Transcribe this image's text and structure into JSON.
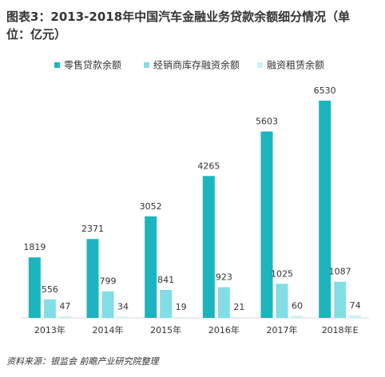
{
  "chart_data": {
    "type": "bar",
    "title": "图表3：2013-2018年中国汽车金融业务贷款余额细分情况（单位：亿元）",
    "categories": [
      "2013年",
      "2014年",
      "2015年",
      "2016年",
      "2017年",
      "2018年E"
    ],
    "series": [
      {
        "name": "零售贷款余额",
        "color": "#1cb5bd",
        "values": [
          1819,
          2371,
          3052,
          4265,
          5603,
          6530
        ]
      },
      {
        "name": "经销商库存融资余额",
        "color": "#82dde6",
        "values": [
          556,
          799,
          841,
          923,
          1025,
          1087
        ]
      },
      {
        "name": "融资租赁余额",
        "color": "#c8f0f4",
        "values": [
          47,
          34,
          19,
          21,
          60,
          74
        ]
      }
    ],
    "legend": "top",
    "source": "资料来源：银监会 前瞻产业研究院整理"
  }
}
